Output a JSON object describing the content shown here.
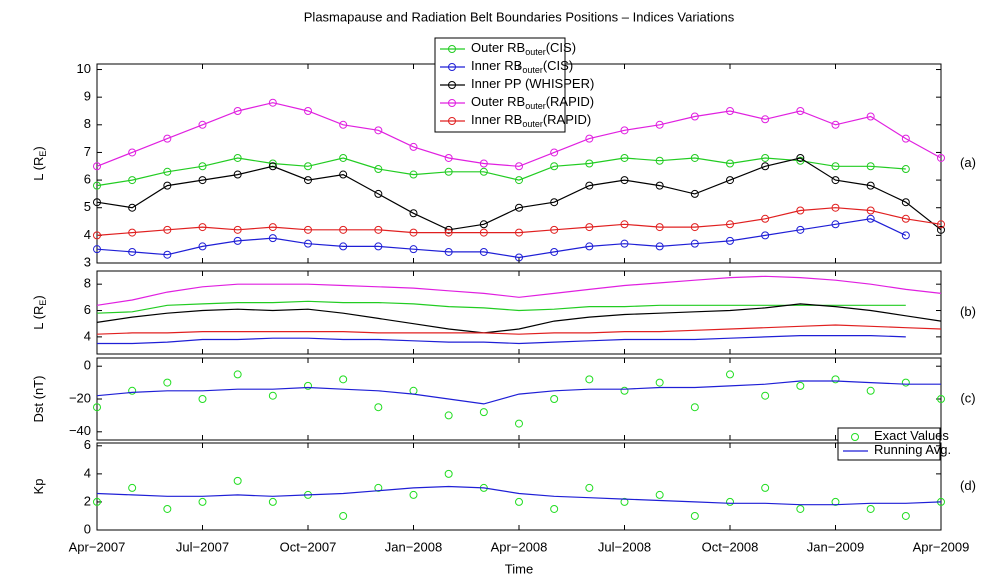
{
  "chart_data": [
    {
      "type": "line",
      "title": "Plasmapause and Radiation Belt Boundaries Positions – Indices Variations",
      "ylabel": "L (R",
      "ylabel_sub": "E",
      "ylabel_end": ")",
      "label": "(a)",
      "x": [
        "2007-04",
        "2007-05",
        "2007-06",
        "2007-07",
        "2007-08",
        "2007-09",
        "2007-10",
        "2007-11",
        "2007-12",
        "2008-01",
        "2008-02",
        "2008-03",
        "2008-04",
        "2008-05",
        "2008-06",
        "2008-07",
        "2008-08",
        "2008-09",
        "2008-10",
        "2008-11",
        "2008-12",
        "2009-01",
        "2009-02",
        "2009-03",
        "2009-04"
      ],
      "xlim": [
        "2007-04",
        "2009-04"
      ],
      "ylim": [
        3,
        10.2
      ],
      "yticks": [
        3,
        4,
        5,
        6,
        7,
        8,
        9,
        10
      ],
      "legend": "upper center",
      "series": [
        {
          "name": "Outer RB",
          "name_sub": "outer",
          "name_end": "(CIS)",
          "color": "#22cc22",
          "marker": true,
          "values": [
            5.8,
            6,
            6.3,
            6.5,
            6.8,
            6.6,
            6.5,
            6.8,
            6.4,
            6.2,
            6.3,
            6.3,
            6.0,
            6.5,
            6.6,
            6.8,
            6.7,
            6.8,
            6.6,
            6.8,
            6.7,
            6.5,
            6.5,
            6.4,
            null
          ]
        },
        {
          "name": "Inner RB",
          "name_sub": "outer",
          "name_end": "(CIS)",
          "color": "#1f1fd6",
          "marker": true,
          "values": [
            3.5,
            3.4,
            3.3,
            3.6,
            3.8,
            3.9,
            3.7,
            3.6,
            3.6,
            3.5,
            3.4,
            3.4,
            3.2,
            3.4,
            3.6,
            3.7,
            3.6,
            3.7,
            3.8,
            4.0,
            4.2,
            4.4,
            4.6,
            4.0,
            null
          ]
        },
        {
          "name": "Inner PP (WHISPER)",
          "color": "#000000",
          "marker": true,
          "values": [
            5.2,
            5,
            5.8,
            6,
            6.2,
            6.5,
            6,
            6.2,
            5.5,
            4.8,
            4.2,
            4.4,
            5,
            5.2,
            5.8,
            6,
            5.8,
            5.5,
            6,
            6.5,
            6.8,
            6,
            5.8,
            5.2,
            4.2
          ]
        },
        {
          "name": "Outer RB",
          "name_sub": "outer",
          "name_end": "(RAPID)",
          "color": "#e020e0",
          "marker": true,
          "values": [
            6.5,
            7,
            7.5,
            8,
            8.5,
            8.8,
            8.5,
            8,
            7.8,
            7.2,
            6.8,
            6.6,
            6.5,
            7,
            7.5,
            7.8,
            8,
            8.3,
            8.5,
            8.2,
            8.5,
            8,
            8.3,
            7.5,
            6.8
          ]
        },
        {
          "name": "Inner RB",
          "name_sub": "outer",
          "name_end": "(RAPID)",
          "color": "#e02020",
          "marker": true,
          "values": [
            4,
            4.1,
            4.2,
            4.3,
            4.2,
            4.3,
            4.2,
            4.2,
            4.2,
            4.1,
            4.1,
            4.1,
            4.1,
            4.2,
            4.3,
            4.4,
            4.3,
            4.3,
            4.4,
            4.6,
            4.9,
            5,
            4.9,
            4.6,
            4.4
          ]
        }
      ]
    },
    {
      "type": "line",
      "ylabel": "L (R",
      "ylabel_sub": "E",
      "ylabel_end": ")",
      "label": "(b)",
      "x": [
        "2007-04",
        "2007-05",
        "2007-06",
        "2007-07",
        "2007-08",
        "2007-09",
        "2007-10",
        "2007-11",
        "2007-12",
        "2008-01",
        "2008-02",
        "2008-03",
        "2008-04",
        "2008-05",
        "2008-06",
        "2008-07",
        "2008-08",
        "2008-09",
        "2008-10",
        "2008-11",
        "2008-12",
        "2009-01",
        "2009-02",
        "2009-03",
        "2009-04"
      ],
      "xlim": [
        "2007-04",
        "2009-04"
      ],
      "ylim": [
        2.7,
        9
      ],
      "yticks": [
        4,
        6,
        8
      ],
      "series": [
        {
          "color": "#e020e0",
          "values": [
            6.4,
            6.8,
            7.4,
            7.8,
            8.0,
            8.0,
            8.0,
            7.9,
            7.8,
            7.7,
            7.5,
            7.3,
            7.0,
            7.3,
            7.6,
            7.9,
            8.1,
            8.3,
            8.5,
            8.6,
            8.5,
            8.3,
            8.0,
            7.6,
            7.3
          ]
        },
        {
          "color": "#22cc22",
          "values": [
            5.8,
            5.9,
            6.4,
            6.5,
            6.6,
            6.6,
            6.7,
            6.6,
            6.6,
            6.5,
            6.3,
            6.2,
            6.0,
            6.1,
            6.3,
            6.3,
            6.4,
            6.4,
            6.4,
            6.4,
            6.4,
            6.4,
            6.4,
            6.4,
            null
          ]
        },
        {
          "color": "#000000",
          "values": [
            5.1,
            5.5,
            5.8,
            6.0,
            6.1,
            6.0,
            6.1,
            5.8,
            5.4,
            5.0,
            4.6,
            4.3,
            4.6,
            5.2,
            5.5,
            5.7,
            5.8,
            5.9,
            6.0,
            6.2,
            6.5,
            6.3,
            6.0,
            5.6,
            5.2
          ]
        },
        {
          "color": "#e02020",
          "values": [
            4.2,
            4.3,
            4.3,
            4.4,
            4.4,
            4.4,
            4.4,
            4.4,
            4.3,
            4.3,
            4.3,
            4.3,
            4.2,
            4.3,
            4.3,
            4.4,
            4.4,
            4.5,
            4.6,
            4.7,
            4.8,
            4.9,
            4.8,
            4.7,
            4.6
          ]
        },
        {
          "color": "#1f1fd6",
          "values": [
            3.5,
            3.5,
            3.6,
            3.8,
            3.8,
            3.9,
            3.9,
            3.8,
            3.8,
            3.7,
            3.6,
            3.6,
            3.5,
            3.6,
            3.7,
            3.8,
            3.8,
            3.8,
            3.9,
            4.0,
            4.1,
            4.1,
            4.1,
            4.0,
            null
          ]
        }
      ]
    },
    {
      "type": "combo",
      "ylabel": "Dst (nT)",
      "label": "(c)",
      "legend": "lower right",
      "x": [
        "2007-04",
        "2007-05",
        "2007-06",
        "2007-07",
        "2007-08",
        "2007-09",
        "2007-10",
        "2007-11",
        "2007-12",
        "2008-01",
        "2008-02",
        "2008-03",
        "2008-04",
        "2008-05",
        "2008-06",
        "2008-07",
        "2008-08",
        "2008-09",
        "2008-10",
        "2008-11",
        "2008-12",
        "2009-01",
        "2009-02",
        "2009-03",
        "2009-04"
      ],
      "xlim": [
        "2007-04",
        "2009-04"
      ],
      "ylim": [
        -45,
        5
      ],
      "yticks": [
        {
          "value": -40,
          "label": "−40"
        },
        {
          "value": -20,
          "label": "−20"
        },
        0
      ],
      "series": [
        {
          "name": "Exact Values",
          "type": "scatter",
          "color": "#22dd22",
          "values": [
            -25,
            -15,
            -10,
            -20,
            -5,
            -18,
            -12,
            -8,
            -25,
            -15,
            -30,
            -28,
            -35,
            -20,
            -8,
            -15,
            -10,
            -25,
            -5,
            -18,
            -12,
            -8,
            -15,
            -10,
            -20
          ]
        },
        {
          "name": "Running Avg.",
          "type": "line",
          "color": "#1f1fd6",
          "values": [
            -18,
            -16,
            -15,
            -15,
            -14,
            -14,
            -13,
            -14,
            -15,
            -17,
            -20,
            -23,
            -17,
            -15,
            -14,
            -14,
            -13,
            -13,
            -12,
            -11,
            -9,
            -9,
            -10,
            -11,
            -11
          ]
        }
      ]
    },
    {
      "type": "combo",
      "ylabel": "Kp",
      "label": "(d)",
      "xlabel": "Time",
      "x": [
        "2007-04",
        "2007-05",
        "2007-06",
        "2007-07",
        "2007-08",
        "2007-09",
        "2007-10",
        "2007-11",
        "2007-12",
        "2008-01",
        "2008-02",
        "2008-03",
        "2008-04",
        "2008-05",
        "2008-06",
        "2008-07",
        "2008-08",
        "2008-09",
        "2008-10",
        "2008-11",
        "2008-12",
        "2009-01",
        "2009-02",
        "2009-03",
        "2009-04"
      ],
      "xlim": [
        "2007-04",
        "2009-04"
      ],
      "ylim": [
        0,
        6.2
      ],
      "yticks": [
        0,
        2,
        4,
        6
      ],
      "xticks": [
        {
          "value": "2007-04",
          "label": "Apr−2007"
        },
        {
          "value": "2007-07",
          "label": "Jul−2007"
        },
        {
          "value": "2007-10",
          "label": "Oct−2007"
        },
        {
          "value": "2008-01",
          "label": "Jan−2008"
        },
        {
          "value": "2008-04",
          "label": "Apr−2008"
        },
        {
          "value": "2008-07",
          "label": "Jul−2008"
        },
        {
          "value": "2008-10",
          "label": "Oct−2008"
        },
        {
          "value": "2009-01",
          "label": "Jan−2009"
        },
        {
          "value": "2009-04",
          "label": "Apr−2009"
        }
      ],
      "series": [
        {
          "type": "scatter",
          "color": "#22dd22",
          "values": [
            2,
            3,
            1.5,
            2,
            3.5,
            2,
            2.5,
            1,
            3,
            2.5,
            4,
            3,
            2,
            1.5,
            3,
            2,
            2.5,
            1,
            2,
            3,
            1.5,
            2,
            1.5,
            1,
            2
          ]
        },
        {
          "type": "line",
          "color": "#1f1fd6",
          "values": [
            2.6,
            2.5,
            2.4,
            2.4,
            2.5,
            2.4,
            2.5,
            2.6,
            2.8,
            3.0,
            3.1,
            3.0,
            2.6,
            2.4,
            2.3,
            2.2,
            2.1,
            2.0,
            1.9,
            1.9,
            1.8,
            1.8,
            1.9,
            1.9,
            2.0
          ]
        }
      ]
    }
  ]
}
